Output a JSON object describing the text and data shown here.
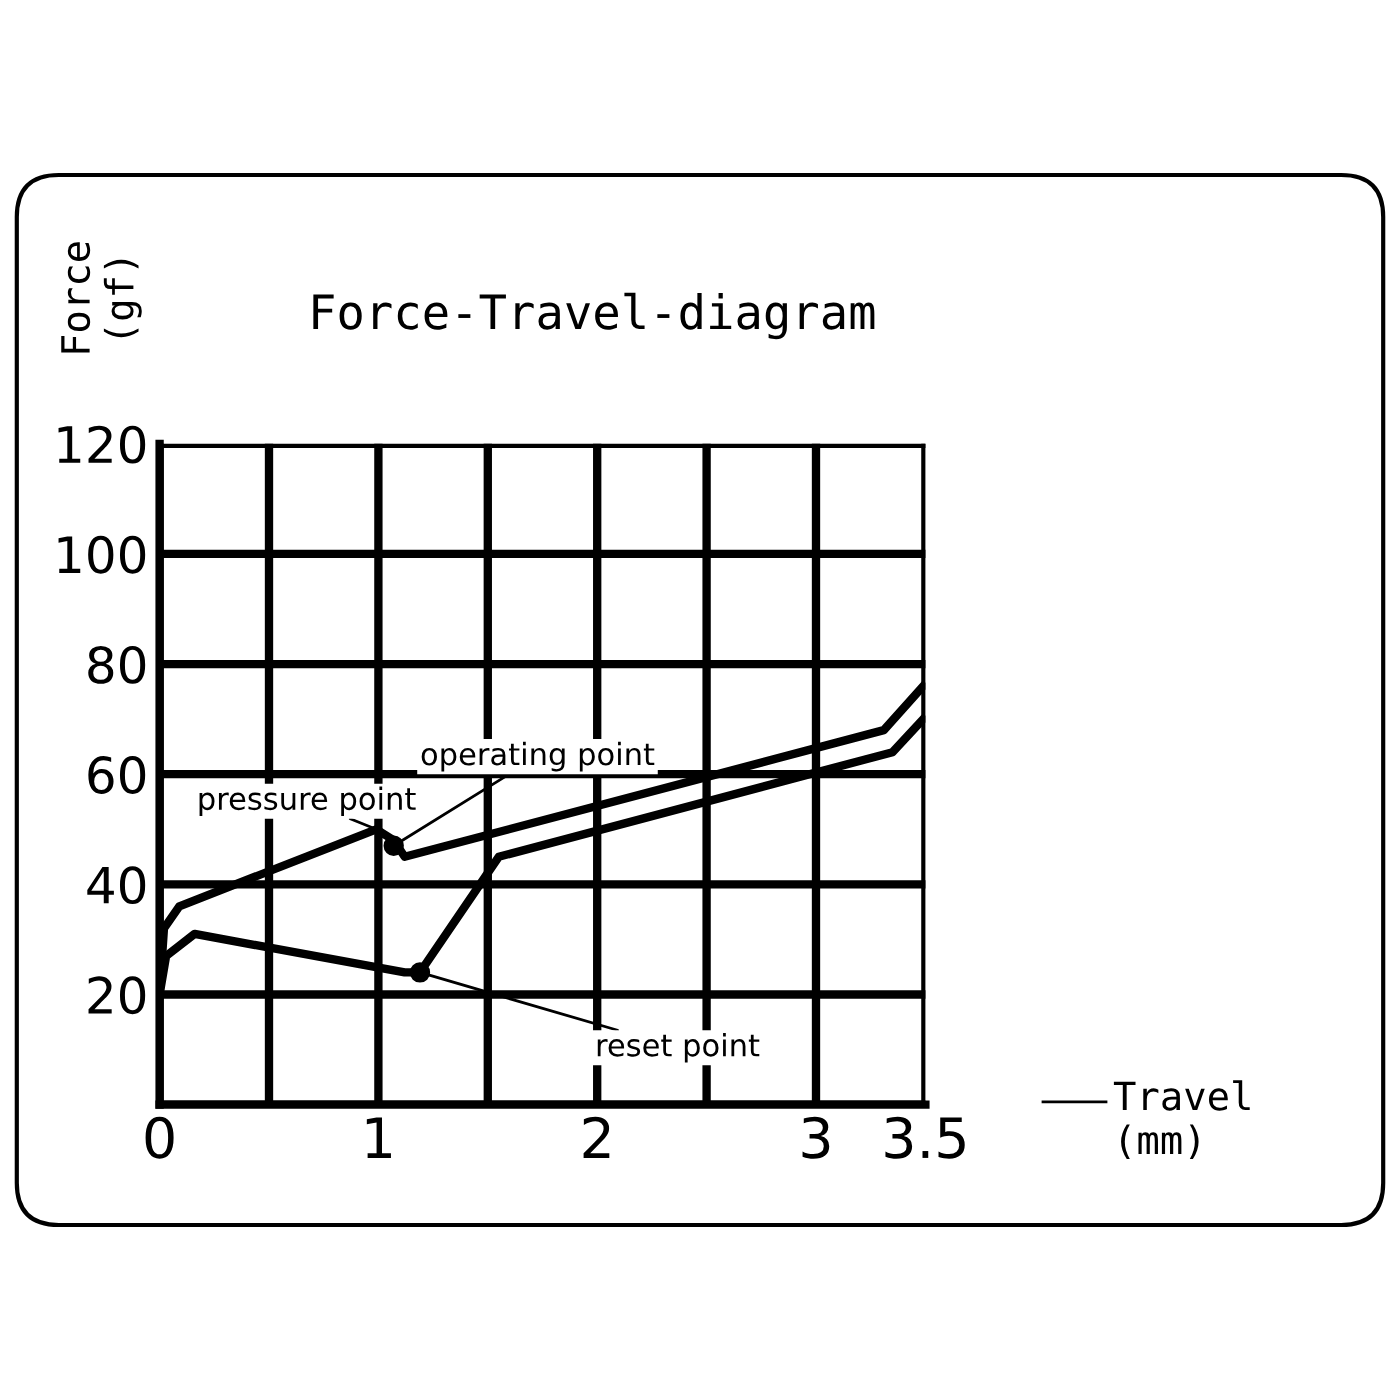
{
  "chart_data": {
    "type": "line",
    "title": "Force-Travel-diagram",
    "xlabel": "Travel\n(mm)",
    "ylabel": "Force\n(gf)",
    "xlim": [
      0,
      3.5
    ],
    "ylim": [
      0,
      120
    ],
    "xticks": [
      0,
      {
        "value": 0.5,
        "label": null
      },
      1,
      {
        "value": 1.5,
        "label": null
      },
      2,
      {
        "value": 2.5,
        "label": null
      },
      3,
      3.5
    ],
    "yticks": [
      {
        "value": 0,
        "label": null
      },
      20,
      40,
      60,
      80,
      100,
      120
    ],
    "grid": true,
    "line_style": "solid",
    "marker": "none",
    "series": [
      {
        "color": "#000000",
        "x": [
          0,
          0.02,
          0.09,
          0.99,
          1.07,
          1.12,
          3.31,
          3.49
        ],
        "values": [
          20,
          32,
          36,
          50,
          48,
          45,
          68,
          76
        ]
      },
      {
        "color": "#000000",
        "x": [
          0,
          0.03,
          0.16,
          1.12,
          1.19,
          1.55,
          3.35,
          3.49
        ],
        "values": [
          20,
          27,
          31,
          24,
          24,
          45,
          64,
          70
        ]
      },
      {
        "type": "scatter",
        "color": "#000000",
        "marker": "circle",
        "x": [
          1.07,
          1.19
        ],
        "values": [
          47,
          24
        ]
      }
    ],
    "annotations": [
      {
        "text": "pressure point",
        "x": 0.99,
        "y": 50
      },
      {
        "text": "operating point",
        "x": 1.07,
        "y": 47
      },
      {
        "text": "reset point",
        "x": 1.19,
        "y": 24
      }
    ]
  }
}
